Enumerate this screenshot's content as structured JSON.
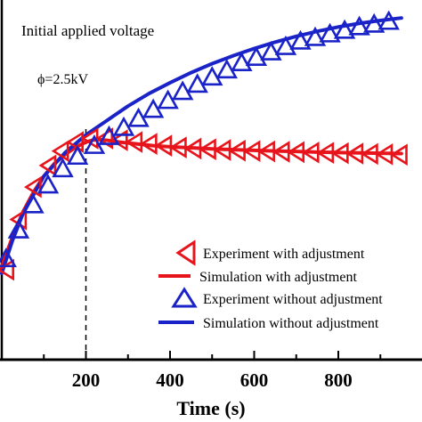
{
  "chart_data": {
    "type": "line",
    "title": "",
    "xlabel": "Time (s)",
    "ylabel": "",
    "xlim": [
      0,
      950
    ],
    "ylim": [
      0,
      100
    ],
    "x_ticks": [
      200,
      400,
      600,
      800
    ],
    "grid": false,
    "legend_position": "bottom-right",
    "annotations": [
      {
        "text": "Initial applied voltage",
        "x": 20,
        "y": 95
      },
      {
        "text": "ϕ=2.5kV",
        "x": 70,
        "y": 80
      }
    ],
    "vline": {
      "x": 200,
      "style": "dashed"
    },
    "series": [
      {
        "name": "Experiment with adjustment",
        "style": "marker-left-triangle",
        "color": "#e8141c",
        "x": [
          10,
          40,
          75,
          110,
          140,
          175,
          210,
          245,
          280,
          315,
          350,
          385,
          420,
          455,
          490,
          525,
          560,
          595,
          630,
          665,
          700,
          735,
          770,
          805,
          840,
          875,
          910,
          945
        ],
        "y": [
          25,
          39,
          48,
          54,
          58,
          60.5,
          61.5,
          61.5,
          61,
          60.5,
          60,
          59.5,
          59,
          58.7,
          58.5,
          58.3,
          58.1,
          58,
          57.9,
          57.8,
          57.7,
          57.6,
          57.5,
          57.4,
          57.3,
          57.2,
          57.1,
          57
        ]
      },
      {
        "name": "Simulation with adjustment",
        "style": "line",
        "color": "#e8141c",
        "x": [
          0,
          25,
          50,
          75,
          100,
          125,
          150,
          175,
          200,
          215,
          230,
          250,
          280,
          320,
          360,
          400,
          450,
          500,
          550,
          600,
          650,
          700,
          750,
          800,
          850,
          900,
          950
        ],
        "y": [
          26,
          34,
          41,
          46.5,
          51,
          54.5,
          57,
          59,
          60.5,
          61,
          61.2,
          61,
          60.5,
          60,
          59.5,
          59.2,
          58.9,
          58.6,
          58.4,
          58.2,
          58,
          57.9,
          57.7,
          57.6,
          57.5,
          57.4,
          57.3
        ]
      },
      {
        "name": "Experiment without adjustment",
        "style": "marker-up-triangle",
        "color": "#1a23c8",
        "x": [
          10,
          40,
          75,
          110,
          145,
          180,
          220,
          255,
          290,
          325,
          360,
          395,
          430,
          465,
          500,
          535,
          570,
          605,
          640,
          675,
          710,
          745,
          780,
          815,
          850,
          885,
          920
        ],
        "y": [
          28,
          36,
          43,
          48.5,
          53,
          56.5,
          59.5,
          62,
          64.5,
          67,
          69.5,
          72,
          74.5,
          76.5,
          78.5,
          80.5,
          82.5,
          84,
          85.5,
          87,
          88.5,
          89.5,
          90.5,
          91.5,
          92.5,
          93.2,
          94
        ]
      },
      {
        "name": "Simulation without adjustment",
        "style": "line",
        "color": "#1a23c8",
        "x": [
          0,
          25,
          50,
          100,
          150,
          200,
          250,
          300,
          350,
          400,
          450,
          500,
          550,
          600,
          650,
          700,
          750,
          800,
          850,
          900,
          950
        ],
        "y": [
          24,
          33,
          40.5,
          51,
          57.5,
          62.5,
          66.5,
          70.5,
          74,
          77,
          79.8,
          82.3,
          84.5,
          86.5,
          88.3,
          89.9,
          91.3,
          92.5,
          93.5,
          94.3,
          95
        ]
      }
    ]
  }
}
